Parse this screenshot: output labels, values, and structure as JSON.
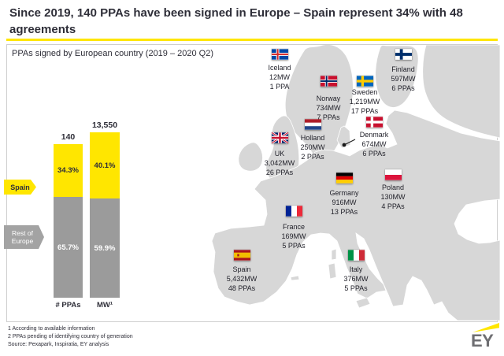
{
  "title": "Since 2019, 140 PPAs have been signed in Europe – Spain represent 34% with 48 agreements",
  "chart": {
    "subtitle": "PPAs signed by European country (2019 – 2020 Q2)",
    "spain_tag": "Spain",
    "rest_tag": "Rest of Europe",
    "bars": [
      {
        "axis_label": "# PPAs",
        "total": "140",
        "spain_pct": "34.3%",
        "rest_pct": "65.7%"
      },
      {
        "axis_label": "MW¹",
        "total": "13,550",
        "spain_pct": "40.1%",
        "rest_pct": "59.9%"
      }
    ]
  },
  "chart_data": {
    "type": "bar",
    "subtype": "stacked-100pct",
    "title": "PPAs signed by European country (2019 – 2020 Q2)",
    "categories": [
      "# PPAs",
      "MW¹"
    ],
    "series": [
      {
        "name": "Spain",
        "values_pct": [
          34.3,
          40.1
        ],
        "color": "#FFE600"
      },
      {
        "name": "Rest of Europe",
        "values_pct": [
          65.7,
          59.9
        ],
        "color": "#9B9B9B"
      }
    ],
    "totals": [
      140,
      13550
    ],
    "legend_position": "left",
    "grid": false,
    "map_points": [
      {
        "country": "Iceland",
        "mw": 12,
        "ppas": 1
      },
      {
        "country": "Norway",
        "mw": 734,
        "ppas": 7
      },
      {
        "country": "Sweden",
        "mw": 1219,
        "ppas": 17
      },
      {
        "country": "Finland",
        "mw": 597,
        "ppas": 6
      },
      {
        "country": "UK",
        "mw": 3042,
        "ppas": 26
      },
      {
        "country": "Holland",
        "mw": 250,
        "ppas": 2
      },
      {
        "country": "Denmark",
        "mw": 674,
        "ppas": 6
      },
      {
        "country": "Germany",
        "mw": 916,
        "ppas": 13
      },
      {
        "country": "Poland",
        "mw": 130,
        "ppas": 4
      },
      {
        "country": "France",
        "mw": 169,
        "ppas": 5
      },
      {
        "country": "Spain",
        "mw": 5432,
        "ppas": 48
      },
      {
        "country": "Italy",
        "mw": 376,
        "ppas": 5
      }
    ]
  },
  "map": {
    "countries": [
      {
        "name": "Iceland",
        "mw": "12MW",
        "ppas": "1 PPA"
      },
      {
        "name": "Norway",
        "mw": "734MW",
        "ppas": "7 PPAs"
      },
      {
        "name": "Sweden",
        "mw": "1,219MW",
        "ppas": "17 PPAs"
      },
      {
        "name": "Finland",
        "mw": "597MW",
        "ppas": "6 PPAs"
      },
      {
        "name": "UK",
        "mw": "3,042MW",
        "ppas": "26 PPAs"
      },
      {
        "name": "Holland",
        "mw": "250MW",
        "ppas": "2 PPAs"
      },
      {
        "name": "Denmark",
        "mw": "674MW",
        "ppas": "6 PPAs"
      },
      {
        "name": "Germany",
        "mw": "916MW",
        "ppas": "13 PPAs"
      },
      {
        "name": "Poland",
        "mw": "130MW",
        "ppas": "4 PPAs"
      },
      {
        "name": "France",
        "mw": "169MW",
        "ppas": "5 PPAs"
      },
      {
        "name": "Spain",
        "mw": "5,432MW",
        "ppas": "48 PPAs"
      },
      {
        "name": "Italy",
        "mw": "376MW",
        "ppas": "5 PPAs"
      }
    ]
  },
  "footer": {
    "note1": "1 According to available information",
    "note2": "2 PPAs pending of identifying country of generation",
    "source": "Source: Pexapark, Inspiratia, EY analysis",
    "logo_text": "EY"
  },
  "colors": {
    "ey_yellow": "#FFE600",
    "bar_gray": "#9B9B9B",
    "map_land": "#D7D7D7",
    "text_dark": "#2E2E38"
  }
}
